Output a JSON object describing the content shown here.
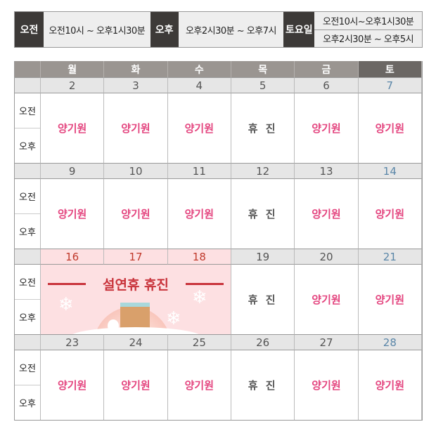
{
  "hours": {
    "am_label": "오전",
    "am_value": "오전10시 ~ 오후1시30분",
    "pm_label": "오후",
    "pm_value": "오후2시30분 ~ 오후7시",
    "sat_label": "토요일",
    "sat_am": "오전10시~오후1시30분",
    "sat_pm": "오후2시30분 ~ 오후5시"
  },
  "calendar": {
    "weekdays": [
      "월",
      "화",
      "수",
      "목",
      "금",
      "토"
    ],
    "am": "오전",
    "pm": "오후",
    "weeks": [
      {
        "dates": [
          "2",
          "3",
          "4",
          "5",
          "6",
          "7"
        ],
        "cells": [
          "양기원",
          "양기원",
          "양기원",
          "휴 진",
          "양기원",
          "양기원"
        ]
      },
      {
        "dates": [
          "9",
          "10",
          "11",
          "12",
          "13",
          "14"
        ],
        "cells": [
          "양기원",
          "양기원",
          "양기원",
          "휴 진",
          "양기원",
          "양기원"
        ]
      },
      {
        "dates": [
          "16",
          "17",
          "18",
          "19",
          "20",
          "21"
        ],
        "cells": [
          "",
          "",
          "",
          "휴 진",
          "양기원",
          "양기원"
        ],
        "holiday": "설연휴 휴진",
        "holiday_days": 3
      },
      {
        "dates": [
          "23",
          "24",
          "25",
          "26",
          "27",
          "28"
        ],
        "cells": [
          "양기원",
          "양기원",
          "양기원",
          "휴 진",
          "양기원",
          "양기원"
        ]
      }
    ]
  },
  "colors": {
    "accent": "#e4457f",
    "holiday": "#c8323a",
    "saturday": "#5a86a8",
    "header": "#9a9591"
  }
}
